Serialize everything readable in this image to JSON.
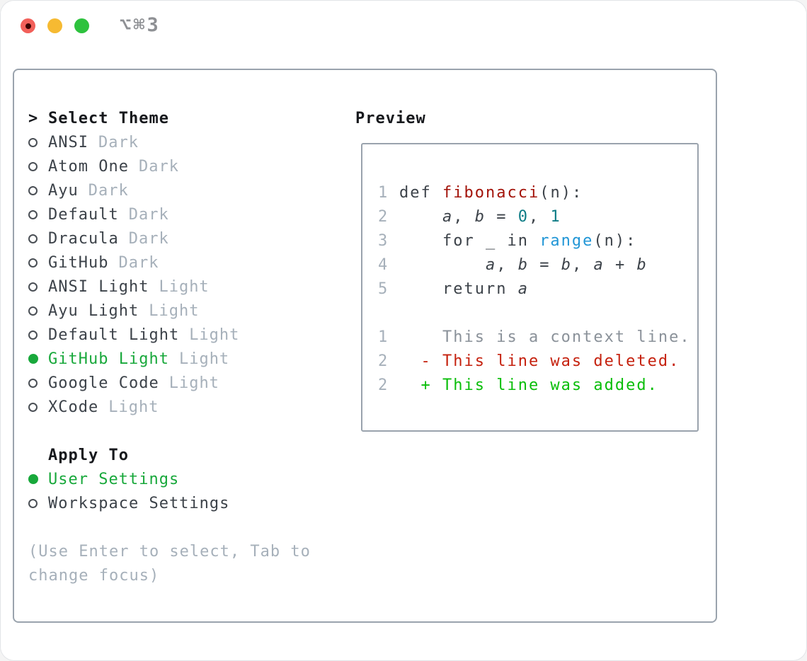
{
  "titlebar": {
    "shortcut": "⌥⌘3",
    "traffic_lights": [
      "close-button",
      "minimize-button",
      "zoom-button"
    ]
  },
  "theme_panel": {
    "prompt_marker": ">",
    "title": "Select Theme",
    "items": [
      {
        "name": "ANSI",
        "tag": "Dark",
        "selected": false
      },
      {
        "name": "Atom One",
        "tag": "Dark",
        "selected": false
      },
      {
        "name": "Ayu",
        "tag": "Dark",
        "selected": false
      },
      {
        "name": "Default",
        "tag": "Dark",
        "selected": false
      },
      {
        "name": "Dracula",
        "tag": "Dark",
        "selected": false
      },
      {
        "name": "GitHub",
        "tag": "Dark",
        "selected": false
      },
      {
        "name": "ANSI Light",
        "tag": "Light",
        "selected": false
      },
      {
        "name": "Ayu Light",
        "tag": "Light",
        "selected": false
      },
      {
        "name": "Default Light",
        "tag": "Light",
        "selected": false
      },
      {
        "name": "GitHub Light",
        "tag": "Light",
        "selected": true
      },
      {
        "name": "Google Code",
        "tag": "Light",
        "selected": false
      },
      {
        "name": "XCode",
        "tag": "Light",
        "selected": false
      }
    ],
    "apply_to": {
      "title": "Apply To",
      "options": [
        {
          "label": "User Settings",
          "selected": true
        },
        {
          "label": "Workspace Settings",
          "selected": false
        }
      ]
    },
    "hint_lines": [
      "(Use Enter to select, Tab to",
      "change focus)"
    ]
  },
  "preview_panel": {
    "title": "Preview",
    "code_lines": [
      {
        "num": "1",
        "tokens": [
          {
            "t": "def ",
            "c": "code"
          },
          {
            "t": "fibonacci",
            "c": "func"
          },
          {
            "t": "(n):",
            "c": "code"
          }
        ]
      },
      {
        "num": "2",
        "tokens": [
          {
            "t": "    ",
            "c": "code"
          },
          {
            "t": "a",
            "c": "var"
          },
          {
            "t": ", ",
            "c": "code"
          },
          {
            "t": "b",
            "c": "var"
          },
          {
            "t": " = ",
            "c": "code"
          },
          {
            "t": "0",
            "c": "num"
          },
          {
            "t": ", ",
            "c": "code"
          },
          {
            "t": "1",
            "c": "num"
          }
        ]
      },
      {
        "num": "3",
        "tokens": [
          {
            "t": "    for _ in ",
            "c": "code"
          },
          {
            "t": "range",
            "c": "builtin"
          },
          {
            "t": "(n):",
            "c": "code"
          }
        ]
      },
      {
        "num": "4",
        "tokens": [
          {
            "t": "        ",
            "c": "code"
          },
          {
            "t": "a",
            "c": "var"
          },
          {
            "t": ", ",
            "c": "code"
          },
          {
            "t": "b",
            "c": "var"
          },
          {
            "t": " = ",
            "c": "code"
          },
          {
            "t": "b",
            "c": "var"
          },
          {
            "t": ", ",
            "c": "code"
          },
          {
            "t": "a",
            "c": "var"
          },
          {
            "t": " + ",
            "c": "code"
          },
          {
            "t": "b",
            "c": "var"
          }
        ]
      },
      {
        "num": "5",
        "tokens": [
          {
            "t": "    return ",
            "c": "code"
          },
          {
            "t": "a",
            "c": "var"
          }
        ]
      }
    ],
    "diff_lines": [
      {
        "num": "1",
        "text": "    This is a context line.",
        "kind": "context"
      },
      {
        "num": "2",
        "text": "  - This line was deleted.",
        "kind": "deleted"
      },
      {
        "num": "2",
        "text": "  + This line was added.",
        "kind": "added"
      }
    ]
  },
  "colors": {
    "window_bg": "#ffffff",
    "chrome_text": "#8e9094",
    "border": "#9aa3ad",
    "ink": "#17191d",
    "item": "#3c4249",
    "muted": "#a6b0ba",
    "green": "#18a83b",
    "code": "#3c4249",
    "func_red": "#a31309",
    "num_teal": "#0e7c86",
    "builtin_blue": "#2196d6",
    "ctx_gray": "#8a9199",
    "del_red": "#c5210e",
    "add_green": "#0abe0a",
    "light_red": "#f2605a",
    "light_yellow": "#f6ba32",
    "light_green": "#2ec23e",
    "light_red_dot": "#3d0200"
  }
}
